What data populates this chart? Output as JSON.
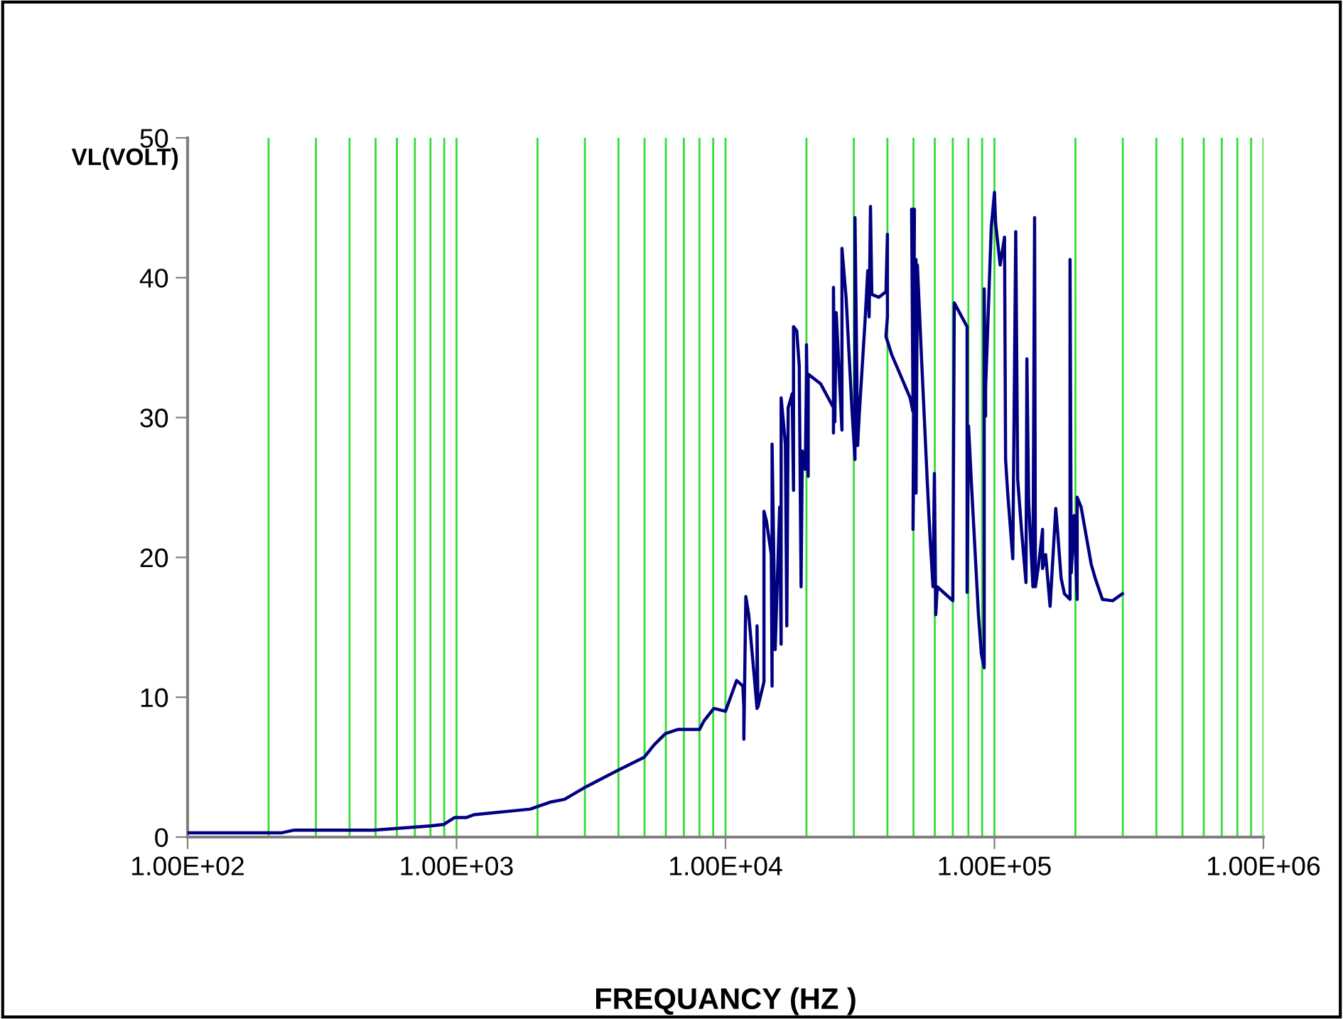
{
  "chart_data": {
    "type": "line",
    "xlabel": "FREQUANCY (HZ )",
    "ylabel": "VL(VOLT)",
    "log": "x",
    "xlim": [
      100,
      1000000
    ],
    "xticks": [
      {
        "value": 100,
        "label": "1.00E+02"
      },
      {
        "value": 1000,
        "label": "1.00E+03"
      },
      {
        "value": 10000,
        "label": "1.00E+04"
      },
      {
        "value": 100000,
        "label": "1.00E+05"
      },
      {
        "value": 1000000,
        "label": "1.00E+06"
      }
    ],
    "ylim": [
      0,
      50
    ],
    "yticks": [
      0,
      10,
      20,
      30,
      40,
      50
    ],
    "grid": "x",
    "marker": "none",
    "line_style": "solid",
    "series": [
      {
        "color": "#000080",
        "x": [
          100,
          223,
          249,
          492,
          801,
          894,
          985,
          1090,
          1160,
          1880,
          2230,
          2520,
          3030,
          3910,
          4980,
          5430,
          5980,
          6670,
          8010,
          8310,
          9050,
          10000,
          11000,
          11600,
          11700,
          11700,
          11900,
          12200,
          12800,
          13100,
          13100,
          13200,
          13900,
          13900,
          14200,
          14800,
          14900,
          14900,
          15300,
          15900,
          16100,
          16100,
          16700,
          16900,
          17100,
          17700,
          17900,
          17900,
          18400,
          18800,
          19100,
          19300,
          19800,
          20000,
          20000,
          20300,
          20300,
          22600,
          25200,
          25200,
          25200,
          25500,
          25800,
          27100,
          27100,
          28100,
          28800,
          29500,
          30300,
          30300,
          31000,
          31400,
          33000,
          33800,
          34200,
          34600,
          35000,
          37200,
          39500,
          40000,
          40000,
          39500,
          41500,
          48600,
          49800,
          49200,
          50400,
          49800,
          51100,
          51100,
          51700,
          53600,
          56300,
          57700,
          59100,
          59800,
          60500,
          61300,
          70000,
          70900,
          71800,
          79100,
          79100,
          80100,
          82100,
          87200,
          89400,
          91600,
          91600,
          92700,
          92700,
          97300,
          100000,
          101000,
          105000,
          109000,
          110000,
          112000,
          117000,
          120000,
          122000,
          126000,
          131000,
          132000,
          134000,
          139000,
          141000,
          142000,
          146000,
          151000,
          151000,
          155000,
          161000,
          169000,
          171000,
          177000,
          182000,
          191000,
          191000,
          193000,
          198000,
          203000,
          203000,
          210000,
          229000,
          237000,
          252000,
          275000,
          299000
        ],
        "values": [
          0.3,
          0.3,
          0.5,
          0.5,
          0.8,
          0.9,
          1.4,
          1.4,
          1.6,
          2.0,
          2.5,
          2.7,
          3.6,
          4.7,
          5.7,
          6.6,
          7.4,
          7.7,
          7.7,
          8.3,
          9.2,
          9.0,
          11.2,
          10.8,
          9.3,
          7.0,
          17.2,
          15.9,
          11.4,
          9.2,
          15.1,
          9.3,
          11.1,
          23.3,
          22.6,
          20.2,
          10.8,
          28.1,
          13.4,
          23.6,
          13.8,
          31.4,
          28.1,
          15.1,
          30.7,
          31.7,
          24.8,
          36.5,
          36.2,
          33.7,
          17.9,
          27.6,
          26.3,
          33.1,
          35.2,
          25.8,
          33.1,
          32.4,
          30.7,
          28.9,
          39.3,
          29.7,
          37.5,
          29.1,
          42.1,
          38.5,
          34.5,
          30.7,
          27.0,
          44.3,
          28.0,
          30.1,
          36.8,
          40.5,
          37.2,
          45.1,
          38.8,
          38.6,
          39.0,
          43.1,
          37.2,
          35.8,
          34.5,
          31.4,
          30.4,
          44.9,
          44.9,
          22.0,
          41.3,
          24.6,
          40.9,
          34.1,
          25.3,
          21.2,
          17.9,
          26.0,
          15.9,
          17.9,
          16.9,
          38.2,
          38.0,
          36.5,
          17.5,
          29.4,
          25.3,
          15.9,
          13.1,
          12.1,
          39.2,
          30.1,
          32.1,
          43.6,
          46.1,
          43.9,
          40.9,
          42.9,
          27.0,
          24.6,
          19.9,
          43.3,
          25.6,
          22.0,
          18.2,
          34.2,
          24.0,
          17.9,
          44.3,
          17.9,
          19.5,
          22.0,
          19.2,
          20.2,
          16.5,
          23.5,
          22.3,
          18.5,
          17.4,
          17.0,
          41.3,
          18.9,
          23.0,
          17.0,
          24.3,
          23.6,
          19.5,
          18.5,
          17.0,
          16.9,
          17.4
        ]
      }
    ]
  }
}
